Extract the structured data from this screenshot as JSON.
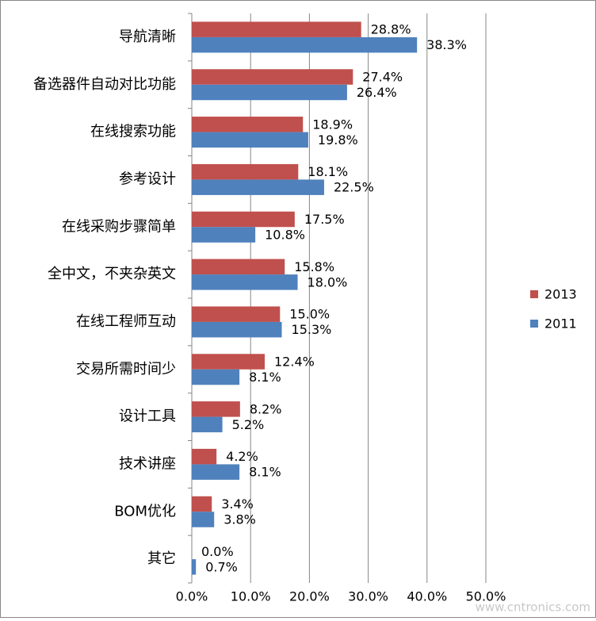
{
  "chart_data": {
    "type": "bar",
    "orientation": "horizontal",
    "categories": [
      "导航清晰",
      "备选器件自动对比功能",
      "在线搜索功能",
      "参考设计",
      "在线采购步骤简单",
      "全中文，不夹杂英文",
      "在线工程师互动",
      "交易所需时间少",
      "设计工具",
      "技术讲座",
      "BOM优化",
      "其它"
    ],
    "series": [
      {
        "name": "2013",
        "color": "#c0504d",
        "values": [
          28.8,
          27.4,
          18.9,
          18.1,
          17.5,
          15.8,
          15.0,
          12.4,
          8.2,
          4.2,
          3.4,
          0.0
        ],
        "value_labels": [
          "28.8%",
          "27.4%",
          "18.9%",
          "18.1%",
          "17.5%",
          "15.8%",
          "15.0%",
          "12.4%",
          "8.2%",
          "4.2%",
          "3.4%",
          "0.0%"
        ]
      },
      {
        "name": "2011",
        "color": "#4f81bd",
        "values": [
          38.3,
          26.4,
          19.8,
          22.5,
          10.8,
          18.0,
          15.3,
          8.1,
          5.2,
          8.1,
          3.8,
          0.7
        ],
        "value_labels": [
          "38.3%",
          "26.4%",
          "19.8%",
          "22.5%",
          "10.8%",
          "18.0%",
          "15.3%",
          "8.1%",
          "5.2%",
          "8.1%",
          "3.8%",
          "0.7%"
        ]
      }
    ],
    "xlim": [
      0,
      50
    ],
    "xticks": [
      {
        "value": 0,
        "label": "0.0%"
      },
      {
        "value": 10,
        "label": "10.0%"
      },
      {
        "value": 20,
        "label": "20.0%"
      },
      {
        "value": 30,
        "label": "30.0%"
      },
      {
        "value": 40,
        "label": "40.0%"
      },
      {
        "value": 50,
        "label": "50.0%"
      }
    ],
    "grid": true,
    "legend": "right",
    "watermark": "www.cntronics.com"
  }
}
